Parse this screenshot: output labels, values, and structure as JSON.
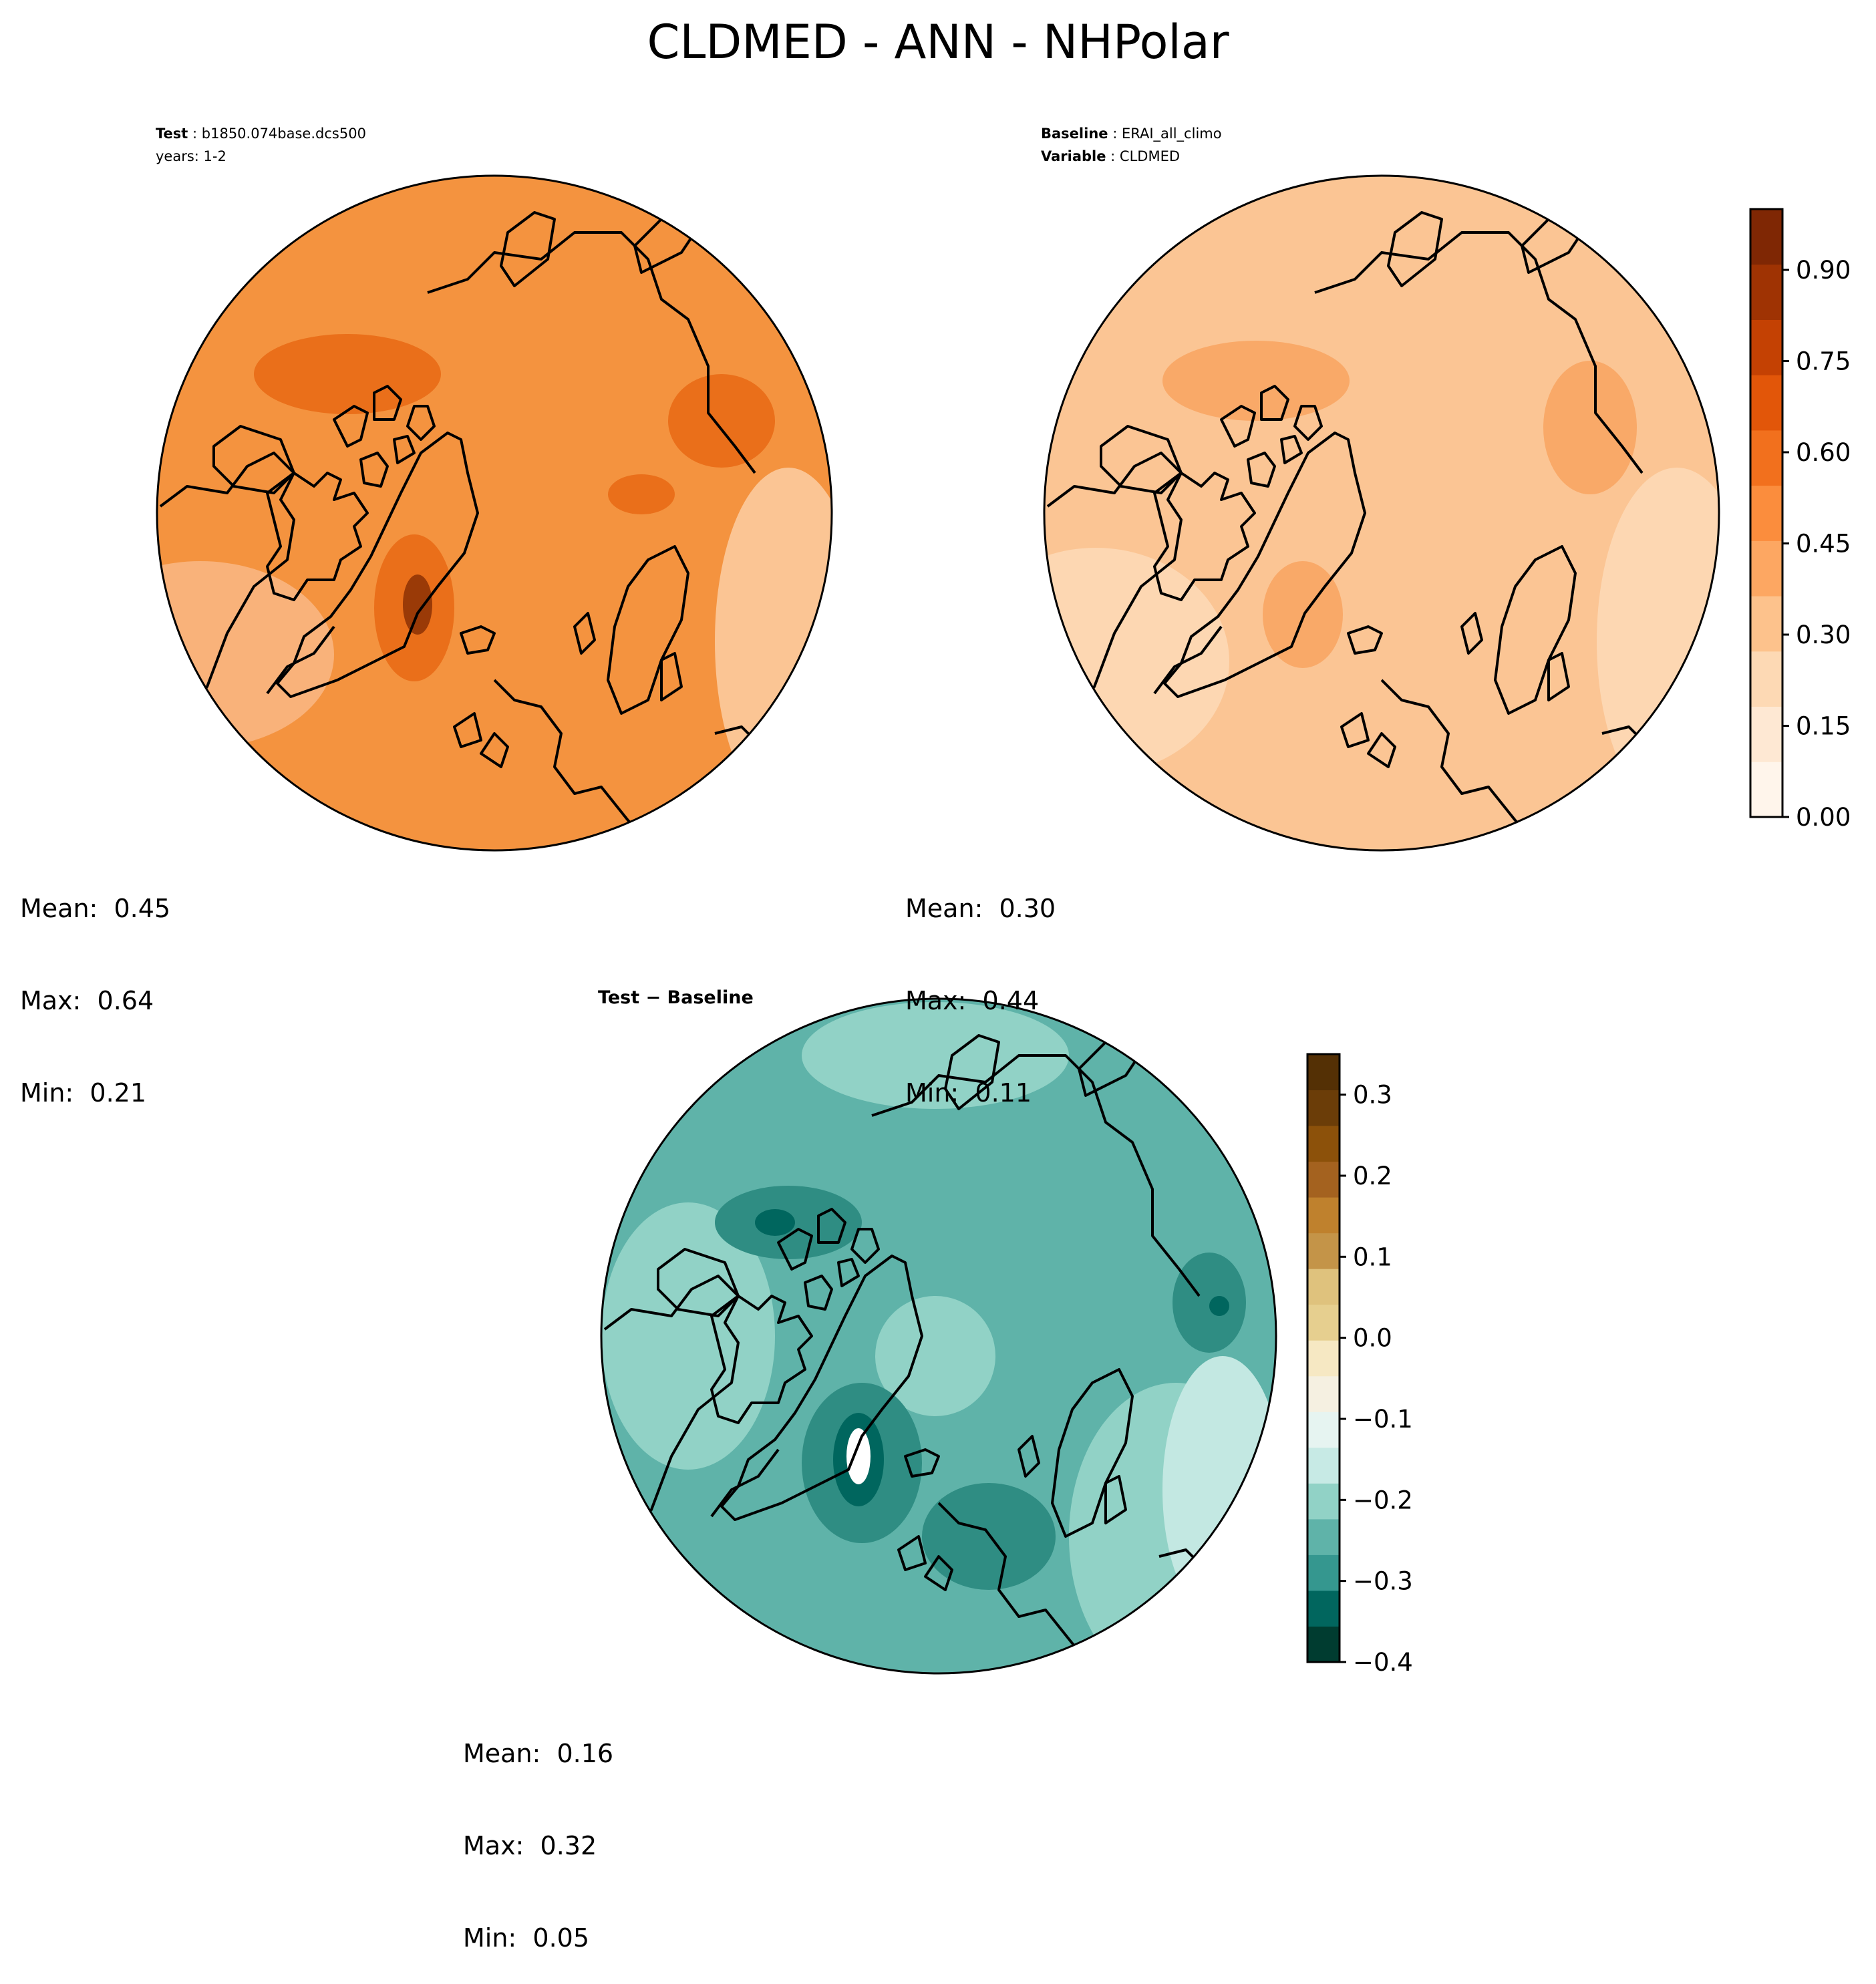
{
  "figure": {
    "title": "CLDMED - ANN - NHPolar"
  },
  "test_panel": {
    "header_label": "Test",
    "header_value": "b1850.074base.dcs500",
    "years": "years: 1-2",
    "stats": {
      "mean": "Mean:  0.45",
      "max": "Max:  0.64",
      "min": "Min:  0.21"
    },
    "colors": {
      "base": "#f4933f",
      "light": "#f9b27a",
      "dark": "#ea6f1a",
      "darkest": "#9a3a07"
    }
  },
  "baseline_panel": {
    "header_label": "Baseline",
    "header_value": "ERAI_all_climo",
    "variable_label": "Variable",
    "variable_value": "CLDMED",
    "stats": {
      "mean": "Mean:  0.30",
      "max": "Max:  0.44",
      "min": "Min:  0.11"
    },
    "colors": {
      "base": "#fbc594",
      "light": "#fdd7b2",
      "dark": "#f9a968"
    }
  },
  "diff_panel": {
    "title": "Test − Baseline",
    "stats": {
      "mean": "Mean:  0.16",
      "max": "Max:  0.32",
      "min": "Min:  0.05"
    },
    "colors": {
      "base": "#5fb3a9",
      "light": "#91d2c6",
      "dark": "#2f8d83",
      "darkest": "#00665e",
      "pale": "#c3e8e2"
    }
  },
  "colorbar_top": {
    "tick_labels": [
      "0.90",
      "0.75",
      "0.60",
      "0.45",
      "0.30",
      "0.15",
      "0.00"
    ],
    "tick_values": [
      0.9,
      0.75,
      0.6,
      0.45,
      0.3,
      0.15,
      0.0
    ],
    "range": [
      0.0,
      1.0
    ],
    "colors": [
      "#fff5eb",
      "#fee8d3",
      "#fdd9b4",
      "#fdc28c",
      "#fda762",
      "#fb8d3d",
      "#f2701d",
      "#e25609",
      "#c44103",
      "#9f3303",
      "#7f2704"
    ]
  },
  "colorbar_diff": {
    "tick_labels": [
      "0.3",
      "0.2",
      "0.1",
      "0.0",
      "−0.1",
      "−0.2",
      "−0.3",
      "−0.4"
    ],
    "tick_values": [
      0.3,
      0.2,
      0.1,
      0.0,
      -0.1,
      -0.2,
      -0.3,
      -0.4
    ],
    "range": [
      -0.4,
      0.35
    ],
    "colors": [
      "#003c30",
      "#01665e",
      "#35978f",
      "#5fb3a9",
      "#91d2c6",
      "#c7eae5",
      "#e6f4f1",
      "#f5f0e1",
      "#f6e8c3",
      "#e6cf8f",
      "#dfc27d",
      "#c49448",
      "#bf812d",
      "#a4621f",
      "#8c510a",
      "#6b3d08",
      "#543005"
    ]
  }
}
